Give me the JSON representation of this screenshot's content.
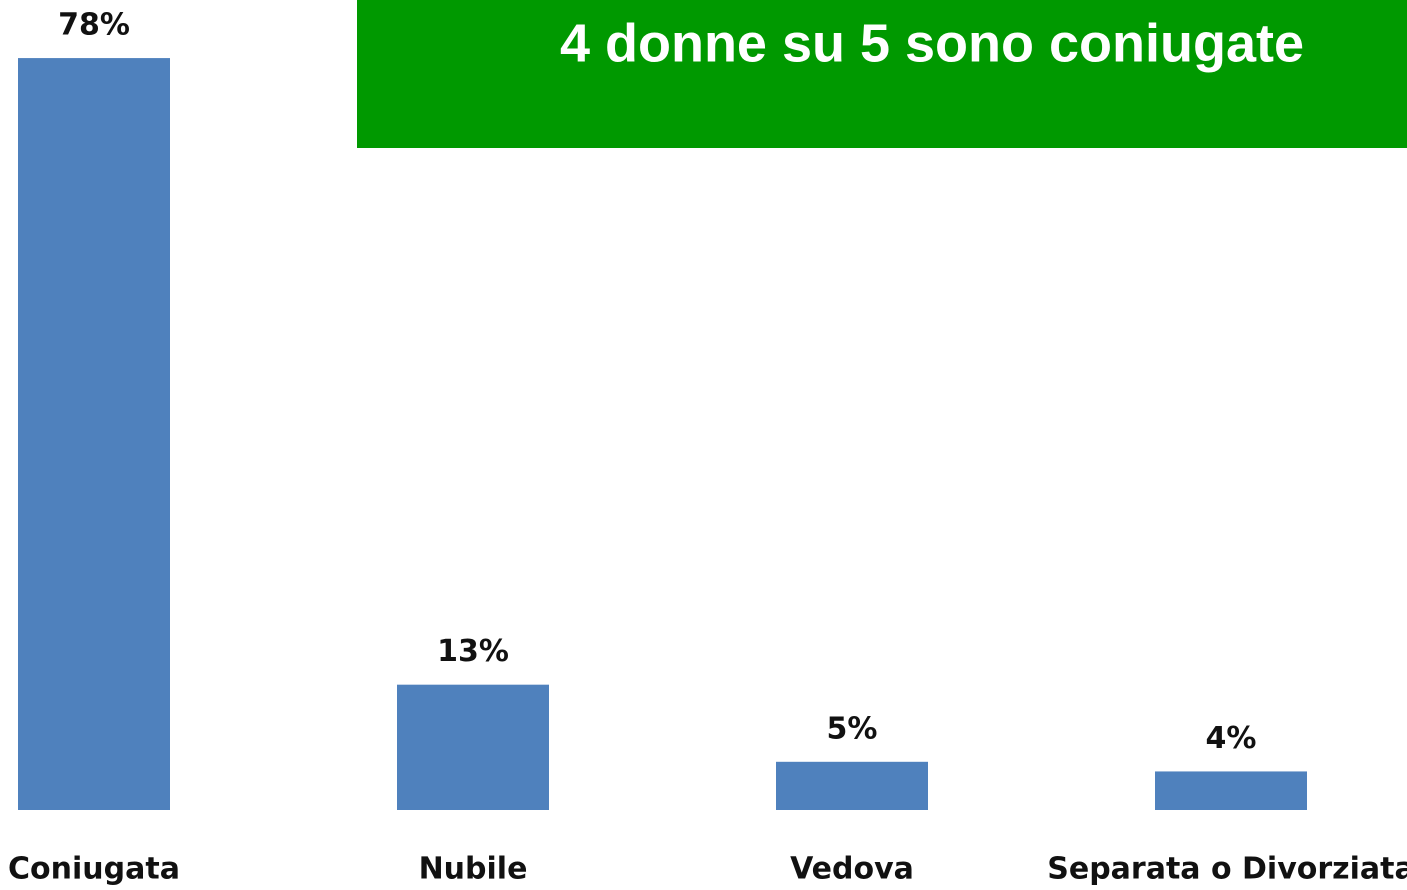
{
  "chart_data": {
    "type": "bar",
    "title": "4 donne su 5 sono coniugate",
    "categories": [
      "Coniugata",
      "Nubile",
      "Vedova",
      "Separata o Divorziata"
    ],
    "values": [
      78,
      13,
      5,
      4
    ],
    "value_labels": [
      "78%",
      "13%",
      "5%",
      "4%"
    ],
    "color": "#4f81bd",
    "title_background": "#009900"
  }
}
